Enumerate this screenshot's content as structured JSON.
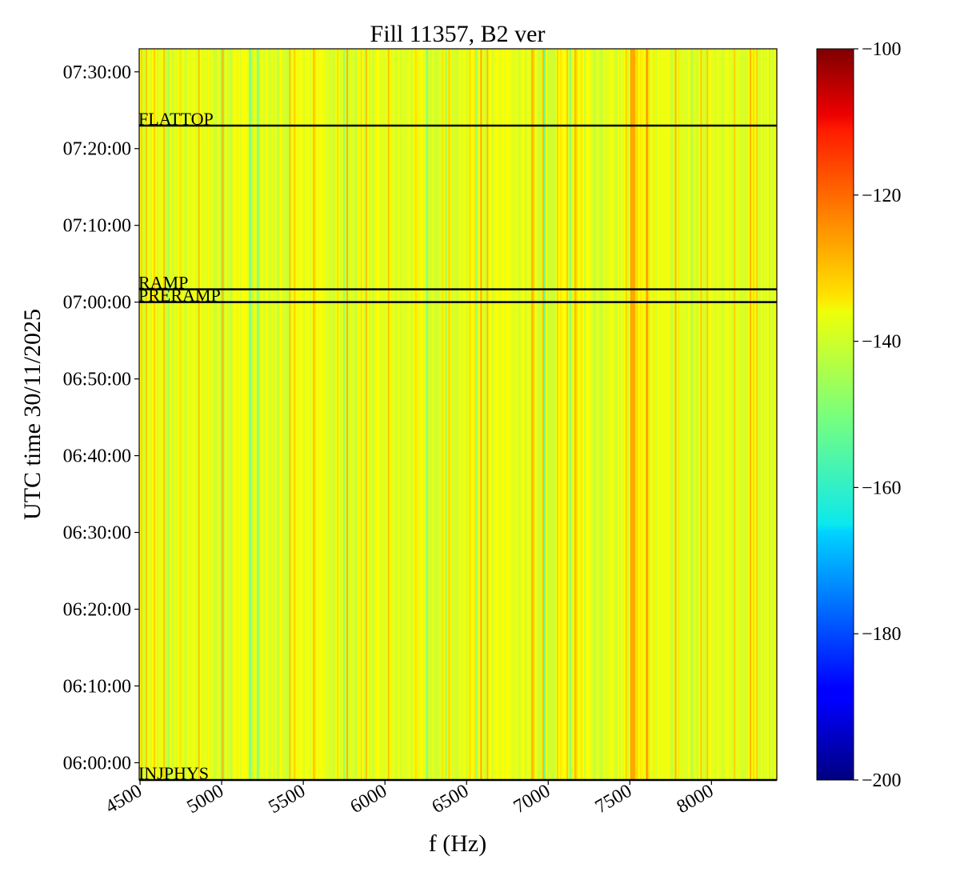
{
  "chart_data": {
    "type": "heatmap",
    "title": "Fill 11357, B2 ver",
    "xlabel": "f (Hz)",
    "ylabel": "UTC time 30/11/2025",
    "xlim": [
      4495,
      8400
    ],
    "ylim": [
      "05:57:45",
      "07:33:00"
    ],
    "x_ticks": [
      4500,
      5000,
      5500,
      6000,
      6500,
      7000,
      7500,
      8000
    ],
    "y_ticks": [
      "06:00:00",
      "06:10:00",
      "06:20:00",
      "06:30:00",
      "06:40:00",
      "06:50:00",
      "07:00:00",
      "07:10:00",
      "07:20:00",
      "07:30:00"
    ],
    "colormap": "jet",
    "colorbar": {
      "range": [
        -200,
        -100
      ],
      "ticks": [
        -100,
        -120,
        -140,
        -160,
        -180,
        -200
      ]
    },
    "values_description": "Power spectral density roughly constant in time; columns vary with frequency between about -150 and -128",
    "typical_value": -140,
    "events": [
      {
        "label": "FLATTOP",
        "time": "07:23:00"
      },
      {
        "label": "RAMP",
        "time": "07:01:40"
      },
      {
        "label": "PRERAMP",
        "time": "07:00:00"
      },
      {
        "label": "INJPHYS",
        "time": "05:57:45"
      }
    ]
  },
  "colors": {
    "event_line": "#000000",
    "frame": "#000000"
  }
}
